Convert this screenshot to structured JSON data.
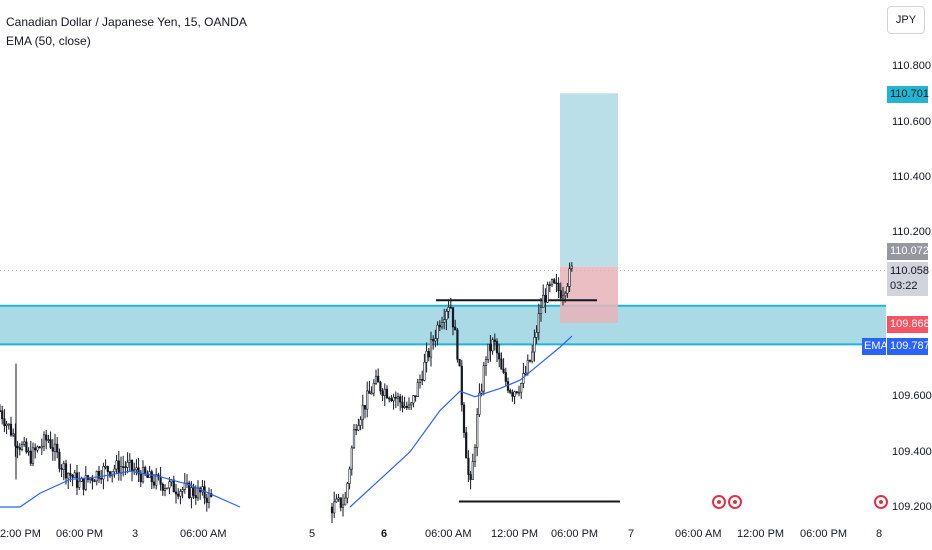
{
  "legend": {
    "symbol_title": "Canadian Dollar / Japanese Yen, 15, OANDA",
    "indicator": "EMA (50, close)"
  },
  "toolbar": {
    "currency_label": "JPY"
  },
  "price_axis": {
    "ticks": [
      "110.800",
      "110.600",
      "110.400",
      "110.200",
      "109.600",
      "109.400",
      "109.200"
    ],
    "tags": {
      "target": "110.701",
      "last": "110.072",
      "current_price": "110.058",
      "countdown": "03:22",
      "stop": "109.868",
      "ema_label": "EMA",
      "ema_value": "109.787"
    }
  },
  "time_axis": {
    "ticks": [
      {
        "label": "2:00 PM",
        "bold": false
      },
      {
        "label": "06:00 PM",
        "bold": false
      },
      {
        "label": "3",
        "bold": false
      },
      {
        "label": "06:00 AM",
        "bold": false
      },
      {
        "label": "5",
        "bold": false
      },
      {
        "label": "6",
        "bold": true
      },
      {
        "label": "06:00 AM",
        "bold": false
      },
      {
        "label": "12:00 PM",
        "bold": false
      },
      {
        "label": "06:00 PM",
        "bold": false
      },
      {
        "label": "7",
        "bold": false
      },
      {
        "label": "06:00 AM",
        "bold": false
      },
      {
        "label": "12:00 PM",
        "bold": false
      },
      {
        "label": "06:00 PM",
        "bold": false
      },
      {
        "label": "8",
        "bold": false
      }
    ]
  },
  "chart_data": {
    "type": "candlestick",
    "symbol": "CADJPY",
    "interval": "15",
    "exchange": "OANDA",
    "price_range": [
      109.17,
      110.97
    ],
    "last_price": 110.058,
    "ema_value": 109.787,
    "zones": {
      "support_resistance_band": [
        109.79,
        109.93
      ],
      "position_target": 110.701,
      "position_entry": 110.072,
      "position_stop": 109.868
    },
    "levels": {
      "resistance_line": 109.95,
      "low_line": 109.22
    }
  },
  "colors": {
    "up": "#26a69a",
    "down": "#131722",
    "candle": "#131722",
    "ema": "#2962ff",
    "zone_fill": "#9bd3e0",
    "zone_border": "#22b5d1",
    "target_fill": "#b2dce6",
    "stop_fill": "#e8b3b8"
  },
  "icons": {
    "event": "canada-flag-icon"
  }
}
